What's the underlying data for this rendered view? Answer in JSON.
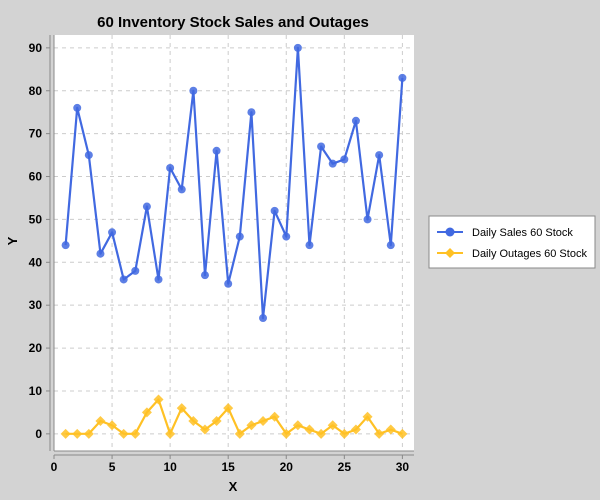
{
  "chart_data": {
    "type": "line",
    "title": "60 Inventory Stock Sales and Outages",
    "xlabel": "X",
    "ylabel": "Y",
    "xlim": [
      0,
      31
    ],
    "ylim": [
      -4,
      93
    ],
    "xticks": [
      0,
      5,
      10,
      15,
      20,
      25,
      30
    ],
    "yticks": [
      0,
      10,
      20,
      30,
      40,
      50,
      60,
      70,
      80,
      90
    ],
    "grid": true,
    "legend_position": "right",
    "x": [
      1,
      2,
      3,
      4,
      5,
      6,
      7,
      8,
      9,
      10,
      11,
      12,
      13,
      14,
      15,
      16,
      17,
      18,
      19,
      20,
      21,
      22,
      23,
      24,
      25,
      26,
      27,
      28,
      29,
      30
    ],
    "series": [
      {
        "name": "Daily Sales 60 Stock",
        "color": "#4169e1",
        "marker": "circle",
        "values": [
          44,
          76,
          65,
          42,
          47,
          36,
          38,
          53,
          36,
          62,
          57,
          80,
          37,
          66,
          35,
          46,
          75,
          27,
          52,
          46,
          90,
          44,
          67,
          63,
          64,
          73,
          50,
          65,
          44,
          83
        ]
      },
      {
        "name": "Daily Outages 60 Stock",
        "color": "#ffc125",
        "marker": "diamond",
        "values": [
          0,
          0,
          0,
          3,
          2,
          0,
          0,
          5,
          8,
          0,
          6,
          3,
          1,
          3,
          6,
          0,
          2,
          3,
          4,
          0,
          2,
          1,
          0,
          2,
          0,
          1,
          4,
          0,
          1,
          0
        ]
      }
    ]
  }
}
